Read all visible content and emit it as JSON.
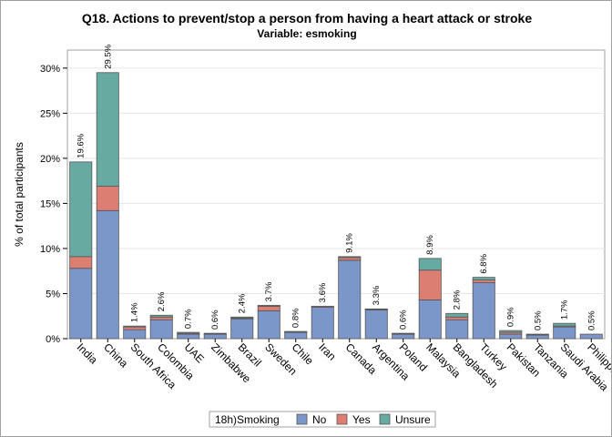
{
  "chart_data": {
    "type": "bar",
    "stacked": true,
    "title": "Q18. Actions to prevent/stop a person from having a heart attack or stroke",
    "subtitle": "Variable: esmoking",
    "xlabel": "",
    "ylabel": "% of total participants",
    "ylim": [
      0,
      32
    ],
    "yticks": [
      "0%",
      "5%",
      "10%",
      "15%",
      "20%",
      "25%",
      "30%"
    ],
    "grid": true,
    "legend_position": "bottom",
    "legend_title": "18h)Smoking",
    "categories": [
      "India",
      "China",
      "South Africa",
      "Colombia",
      "UAE",
      "Zimbabwe",
      "Brazil",
      "Sweden",
      "Chile",
      "Iran",
      "Canada",
      "Argentina",
      "Poland",
      "Malaysia",
      "Bangladesh",
      "Turkey",
      "Pakistan",
      "Tanzania",
      "Saudi Arabia",
      "Philippines"
    ],
    "series": [
      {
        "name": "No",
        "color": "#7b96c9",
        "values": [
          7.8,
          14.2,
          1.0,
          2.1,
          0.5,
          0.5,
          2.2,
          3.1,
          0.7,
          3.5,
          8.7,
          3.2,
          0.5,
          4.3,
          2.1,
          6.2,
          0.5,
          0.4,
          1.3,
          0.5
        ]
      },
      {
        "name": "Yes",
        "color": "#dd7e73",
        "values": [
          1.3,
          2.7,
          0.3,
          0.3,
          0.1,
          0.05,
          0.1,
          0.5,
          0.05,
          0.1,
          0.3,
          0.05,
          0.05,
          3.3,
          0.3,
          0.3,
          0.2,
          0.05,
          0.1,
          0.0
        ]
      },
      {
        "name": "Unsure",
        "color": "#66aaa2",
        "values": [
          10.5,
          12.6,
          0.1,
          0.2,
          0.1,
          0.05,
          0.1,
          0.1,
          0.05,
          0.0,
          0.1,
          0.05,
          0.05,
          1.3,
          0.4,
          0.3,
          0.2,
          0.05,
          0.3,
          0.0
        ]
      }
    ],
    "total_labels": [
      "19.6%",
      "29.5%",
      "1.4%",
      "2.6%",
      "0.7%",
      "0.6%",
      "2.4%",
      "3.7%",
      "0.8%",
      "3.6%",
      "9.1%",
      "3.3%",
      "0.6%",
      "8.9%",
      "2.8%",
      "6.8%",
      "0.9%",
      "0.5%",
      "1.7%",
      "0.5%"
    ]
  }
}
